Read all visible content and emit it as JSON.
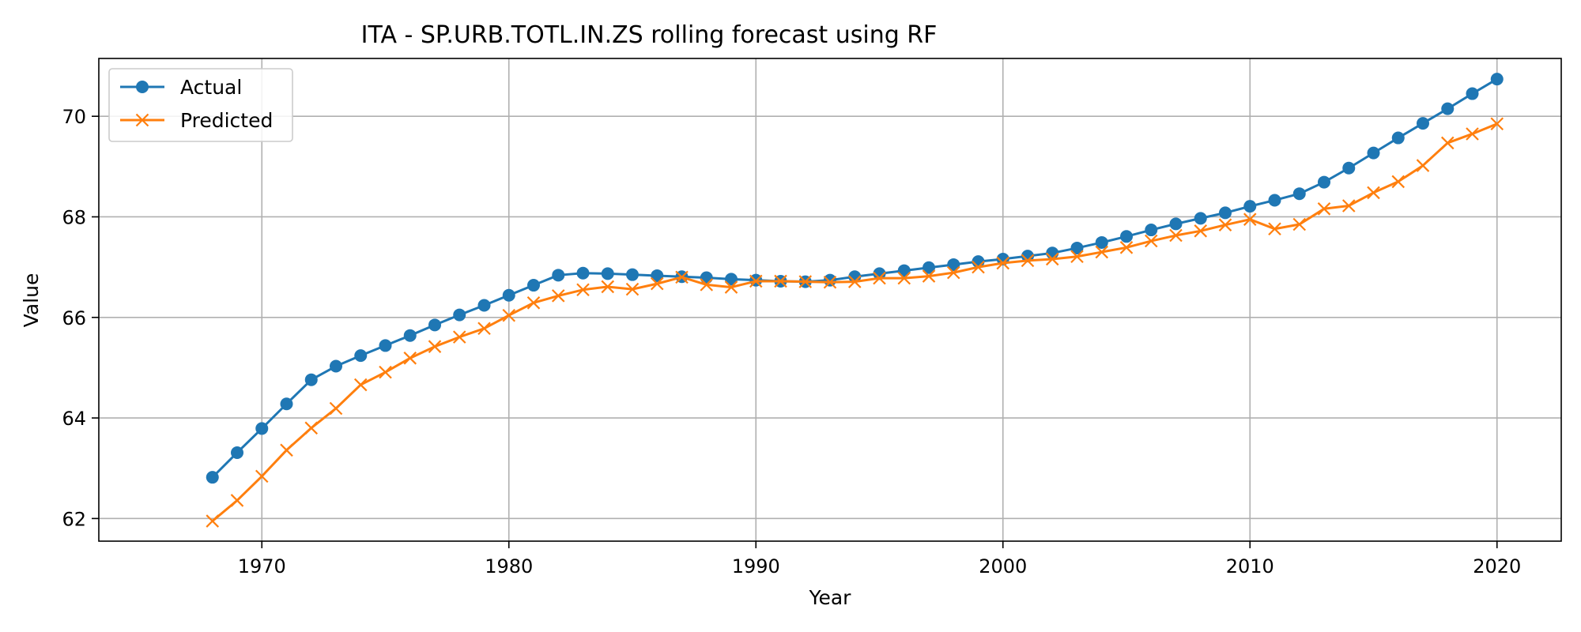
{
  "chart_data": {
    "type": "line",
    "title": "ITA - SP.URB.TOTL.IN.ZS rolling forecast using RF",
    "xlabel": "Year",
    "ylabel": "Value",
    "xlim": [
      1963.4,
      2022.6
    ],
    "ylim": [
      61.55,
      71.15
    ],
    "xticks": [
      1970,
      1980,
      1990,
      2000,
      2010,
      2020
    ],
    "yticks": [
      62,
      64,
      66,
      68,
      70
    ],
    "grid": true,
    "legend": "top-left",
    "x": [
      1968,
      1969,
      1970,
      1971,
      1972,
      1973,
      1974,
      1975,
      1976,
      1977,
      1978,
      1979,
      1980,
      1981,
      1982,
      1983,
      1984,
      1985,
      1986,
      1987,
      1988,
      1989,
      1990,
      1991,
      1992,
      1993,
      1994,
      1995,
      1996,
      1997,
      1998,
      1999,
      2000,
      2001,
      2002,
      2003,
      2004,
      2005,
      2006,
      2007,
      2008,
      2009,
      2010,
      2011,
      2012,
      2013,
      2014,
      2015,
      2016,
      2017,
      2018,
      2019,
      2020
    ],
    "series": [
      {
        "name": "Actual",
        "color": "#1f77b4",
        "marker": "circle",
        "values": [
          62.82,
          63.31,
          63.79,
          64.28,
          64.76,
          65.03,
          65.24,
          65.44,
          65.64,
          65.85,
          66.05,
          66.24,
          66.44,
          66.64,
          66.84,
          66.88,
          66.87,
          66.85,
          66.83,
          66.81,
          66.79,
          66.76,
          66.74,
          66.72,
          66.71,
          66.74,
          66.81,
          66.87,
          66.93,
          66.99,
          67.05,
          67.11,
          67.16,
          67.22,
          67.28,
          67.38,
          67.49,
          67.61,
          67.74,
          67.86,
          67.97,
          68.08,
          68.21,
          68.33,
          68.46,
          68.69,
          68.97,
          69.27,
          69.57,
          69.86,
          70.15,
          70.45,
          70.74
        ]
      },
      {
        "name": "Predicted",
        "color": "#ff7f0e",
        "marker": "x",
        "values": [
          61.95,
          62.36,
          62.84,
          63.36,
          63.8,
          64.19,
          64.66,
          64.91,
          65.19,
          65.42,
          65.61,
          65.78,
          66.04,
          66.29,
          66.43,
          66.55,
          66.61,
          66.56,
          66.67,
          66.8,
          66.65,
          66.6,
          66.72,
          66.72,
          66.71,
          66.7,
          66.71,
          66.78,
          66.78,
          66.82,
          66.89,
          67.0,
          67.08,
          67.13,
          67.16,
          67.21,
          67.3,
          67.39,
          67.52,
          67.63,
          67.72,
          67.84,
          67.95,
          67.76,
          67.85,
          68.16,
          68.22,
          68.48,
          68.7,
          69.02,
          69.47,
          69.65,
          69.85
        ]
      }
    ]
  }
}
